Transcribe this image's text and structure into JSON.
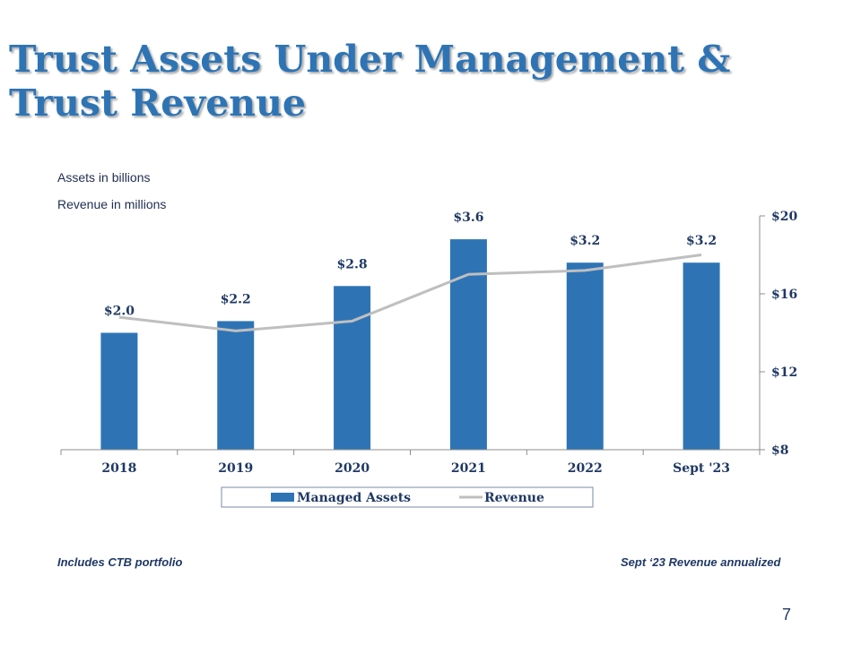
{
  "slide": {
    "title_line1": "Trust Assets Under Management &",
    "title_line2": "Trust Revenue",
    "note_assets": "Assets in billions",
    "note_revenue": "Revenue in millions",
    "footnote_left": "Includes CTB portfolio",
    "footnote_right": "Sept ‘23 Revenue annualized",
    "page_number": "7"
  },
  "colors": {
    "title": "#2e74b5",
    "bar": "#2e74b5",
    "line": "#bfbfbf",
    "text": "#1f3864"
  },
  "chart_data": {
    "type": "bar",
    "categories": [
      "2018",
      "2019",
      "2020",
      "2021",
      "2022",
      "Sept '23"
    ],
    "series": [
      {
        "name": "Managed Assets",
        "type": "bar",
        "axis": "left",
        "values": [
          2.0,
          2.2,
          2.8,
          3.6,
          3.2,
          3.2
        ],
        "labels": [
          "$2.0",
          "$2.2",
          "$2.8",
          "$3.6",
          "$3.2",
          "$3.2"
        ]
      },
      {
        "name": "Revenue",
        "type": "line",
        "axis": "right",
        "values": [
          14.8,
          14.1,
          14.6,
          17.0,
          17.2,
          18.0
        ]
      }
    ],
    "y_left_lim": [
      0,
      4
    ],
    "y_right_lim": [
      8,
      20
    ],
    "y_right_ticks": [
      8,
      12,
      16,
      20
    ],
    "y_right_tick_labels": [
      "$8",
      "$12",
      "$16",
      "$20"
    ],
    "legend_position": "bottom"
  }
}
